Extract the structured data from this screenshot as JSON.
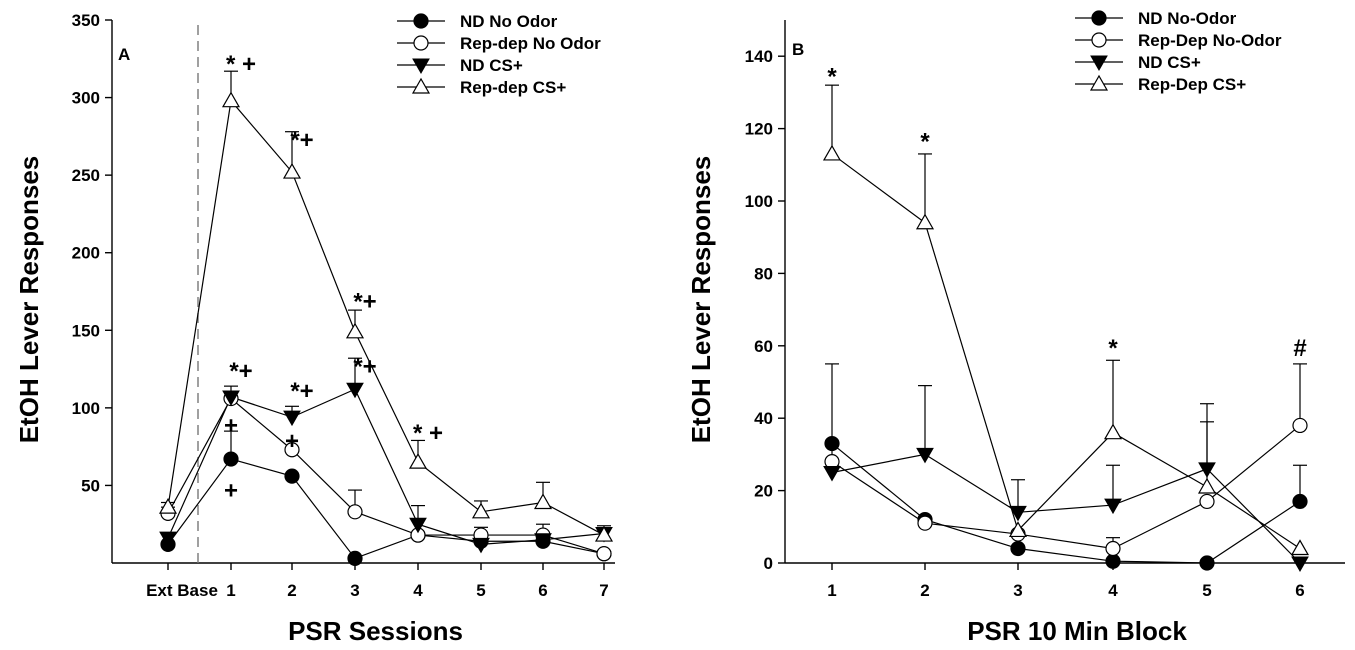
{
  "chart_data": [
    {
      "type": "line",
      "panel_label": "A",
      "title": "",
      "xlabel": "PSR Sessions",
      "ylabel": "EtOH Lever Responses",
      "categories": [
        "Ext Base",
        "1",
        "2",
        "3",
        "4",
        "5",
        "6",
        "7"
      ],
      "ylim": [
        0,
        350
      ],
      "yticks": [
        50,
        100,
        150,
        200,
        250,
        300,
        350
      ],
      "baseline_separator_between": [
        "Ext Base",
        "1"
      ],
      "legend_position": "top-right",
      "grid": false,
      "series": [
        {
          "name": "ND No Odor",
          "marker": "circle-filled",
          "values": [
            12,
            67,
            56,
            3,
            18,
            14,
            14,
            6
          ],
          "err": [
            0,
            18,
            0,
            0,
            0,
            0,
            0,
            0
          ]
        },
        {
          "name": "Rep-dep No Odor",
          "marker": "circle-open",
          "values": [
            32,
            106,
            73,
            33,
            18,
            18,
            18,
            6
          ],
          "err": [
            4,
            4,
            0,
            14,
            0,
            5,
            7,
            0
          ]
        },
        {
          "name": "ND CS+",
          "marker": "triangle-down-filled",
          "values": [
            16,
            107,
            94,
            112,
            25,
            12,
            15,
            19
          ],
          "err": [
            0,
            7,
            7,
            20,
            12,
            0,
            0,
            0
          ]
        },
        {
          "name": "Rep-dep CS+",
          "marker": "triangle-up-open",
          "values": [
            36,
            298,
            252,
            149,
            65,
            33,
            39,
            18
          ],
          "err": [
            3,
            19,
            26,
            14,
            14,
            7,
            13,
            6
          ]
        }
      ],
      "annotations": [
        {
          "x": "1",
          "y": 323,
          "text": "* +"
        },
        {
          "x": "2",
          "y": 274,
          "text": "*+"
        },
        {
          "x": "3",
          "y": 170,
          "text": "*+"
        },
        {
          "x": "3",
          "y": 128,
          "text": "*+"
        },
        {
          "x": "1",
          "y": 125,
          "text": "*+"
        },
        {
          "x": "1",
          "y": 90,
          "text": "+"
        },
        {
          "x": "1",
          "y": 48,
          "text": "+"
        },
        {
          "x": "2",
          "y": 112,
          "text": "*+"
        },
        {
          "x": "2",
          "y": 80,
          "text": "+"
        },
        {
          "x": "4",
          "y": 85,
          "text": "* +"
        }
      ]
    },
    {
      "type": "line",
      "panel_label": "B",
      "title": "",
      "xlabel": "PSR 10 Min Block",
      "ylabel": "EtOH Lever Responses",
      "categories": [
        "1",
        "2",
        "3",
        "4",
        "5",
        "6"
      ],
      "ylim": [
        0,
        150
      ],
      "yticks": [
        0,
        20,
        40,
        60,
        80,
        100,
        120,
        140
      ],
      "legend_position": "top-right",
      "grid": false,
      "series": [
        {
          "name": "ND No-Odor",
          "marker": "circle-filled",
          "values": [
            33,
            12,
            4,
            0.5,
            0,
            17
          ],
          "err": [
            0,
            0,
            0,
            0,
            0,
            10
          ]
        },
        {
          "name": "Rep-Dep No-Odor",
          "marker": "circle-open",
          "values": [
            28,
            11,
            8,
            4,
            17,
            38
          ],
          "err": [
            0,
            0,
            0,
            3,
            0,
            17
          ]
        },
        {
          "name": "ND CS+",
          "marker": "triangle-down-filled",
          "values": [
            25,
            30,
            14,
            16,
            26,
            0
          ],
          "err": [
            30,
            19,
            9,
            11,
            13,
            0
          ]
        },
        {
          "name": "Rep-Dep CS+",
          "marker": "triangle-up-open",
          "values": [
            113,
            94,
            9,
            36,
            21,
            4
          ],
          "err": [
            19,
            19,
            0,
            20,
            23,
            0
          ]
        }
      ],
      "annotations": [
        {
          "x": "1",
          "y": 135,
          "text": "*"
        },
        {
          "x": "2",
          "y": 117,
          "text": "*"
        },
        {
          "x": "4",
          "y": 60,
          "text": "*"
        },
        {
          "x": "6",
          "y": 60,
          "text": "#"
        }
      ]
    }
  ]
}
